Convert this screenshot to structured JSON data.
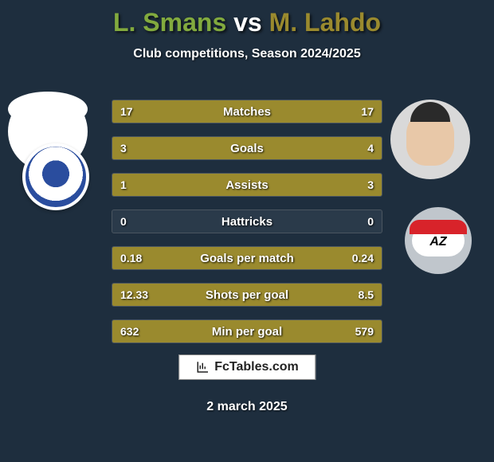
{
  "header": {
    "player_left": "L. Smans",
    "vs": "vs",
    "player_right": "M. Lahdo",
    "player_left_color": "#82aa3e",
    "player_right_color": "#9a8a2e",
    "subtitle": "Club competitions, Season 2024/2025"
  },
  "stats": {
    "bar_color": "#9a8a2e",
    "track_color": "#2a3a4a",
    "rows": [
      {
        "label": "Matches",
        "left": "17",
        "right": "17",
        "left_pct": 50,
        "right_pct": 50
      },
      {
        "label": "Goals",
        "left": "3",
        "right": "4",
        "left_pct": 43,
        "right_pct": 57
      },
      {
        "label": "Assists",
        "left": "1",
        "right": "3",
        "left_pct": 25,
        "right_pct": 75
      },
      {
        "label": "Hattricks",
        "left": "0",
        "right": "0",
        "left_pct": 0,
        "right_pct": 0
      },
      {
        "label": "Goals per match",
        "left": "0.18",
        "right": "0.24",
        "left_pct": 43,
        "right_pct": 57
      },
      {
        "label": "Shots per goal",
        "left": "12.33",
        "right": "8.5",
        "left_pct": 59,
        "right_pct": 41
      },
      {
        "label": "Min per goal",
        "left": "632",
        "right": "579",
        "left_pct": 52,
        "right_pct": 48
      }
    ]
  },
  "brand": "FcTables.com",
  "date": "2 march 2025",
  "club_right_text": "AZ"
}
